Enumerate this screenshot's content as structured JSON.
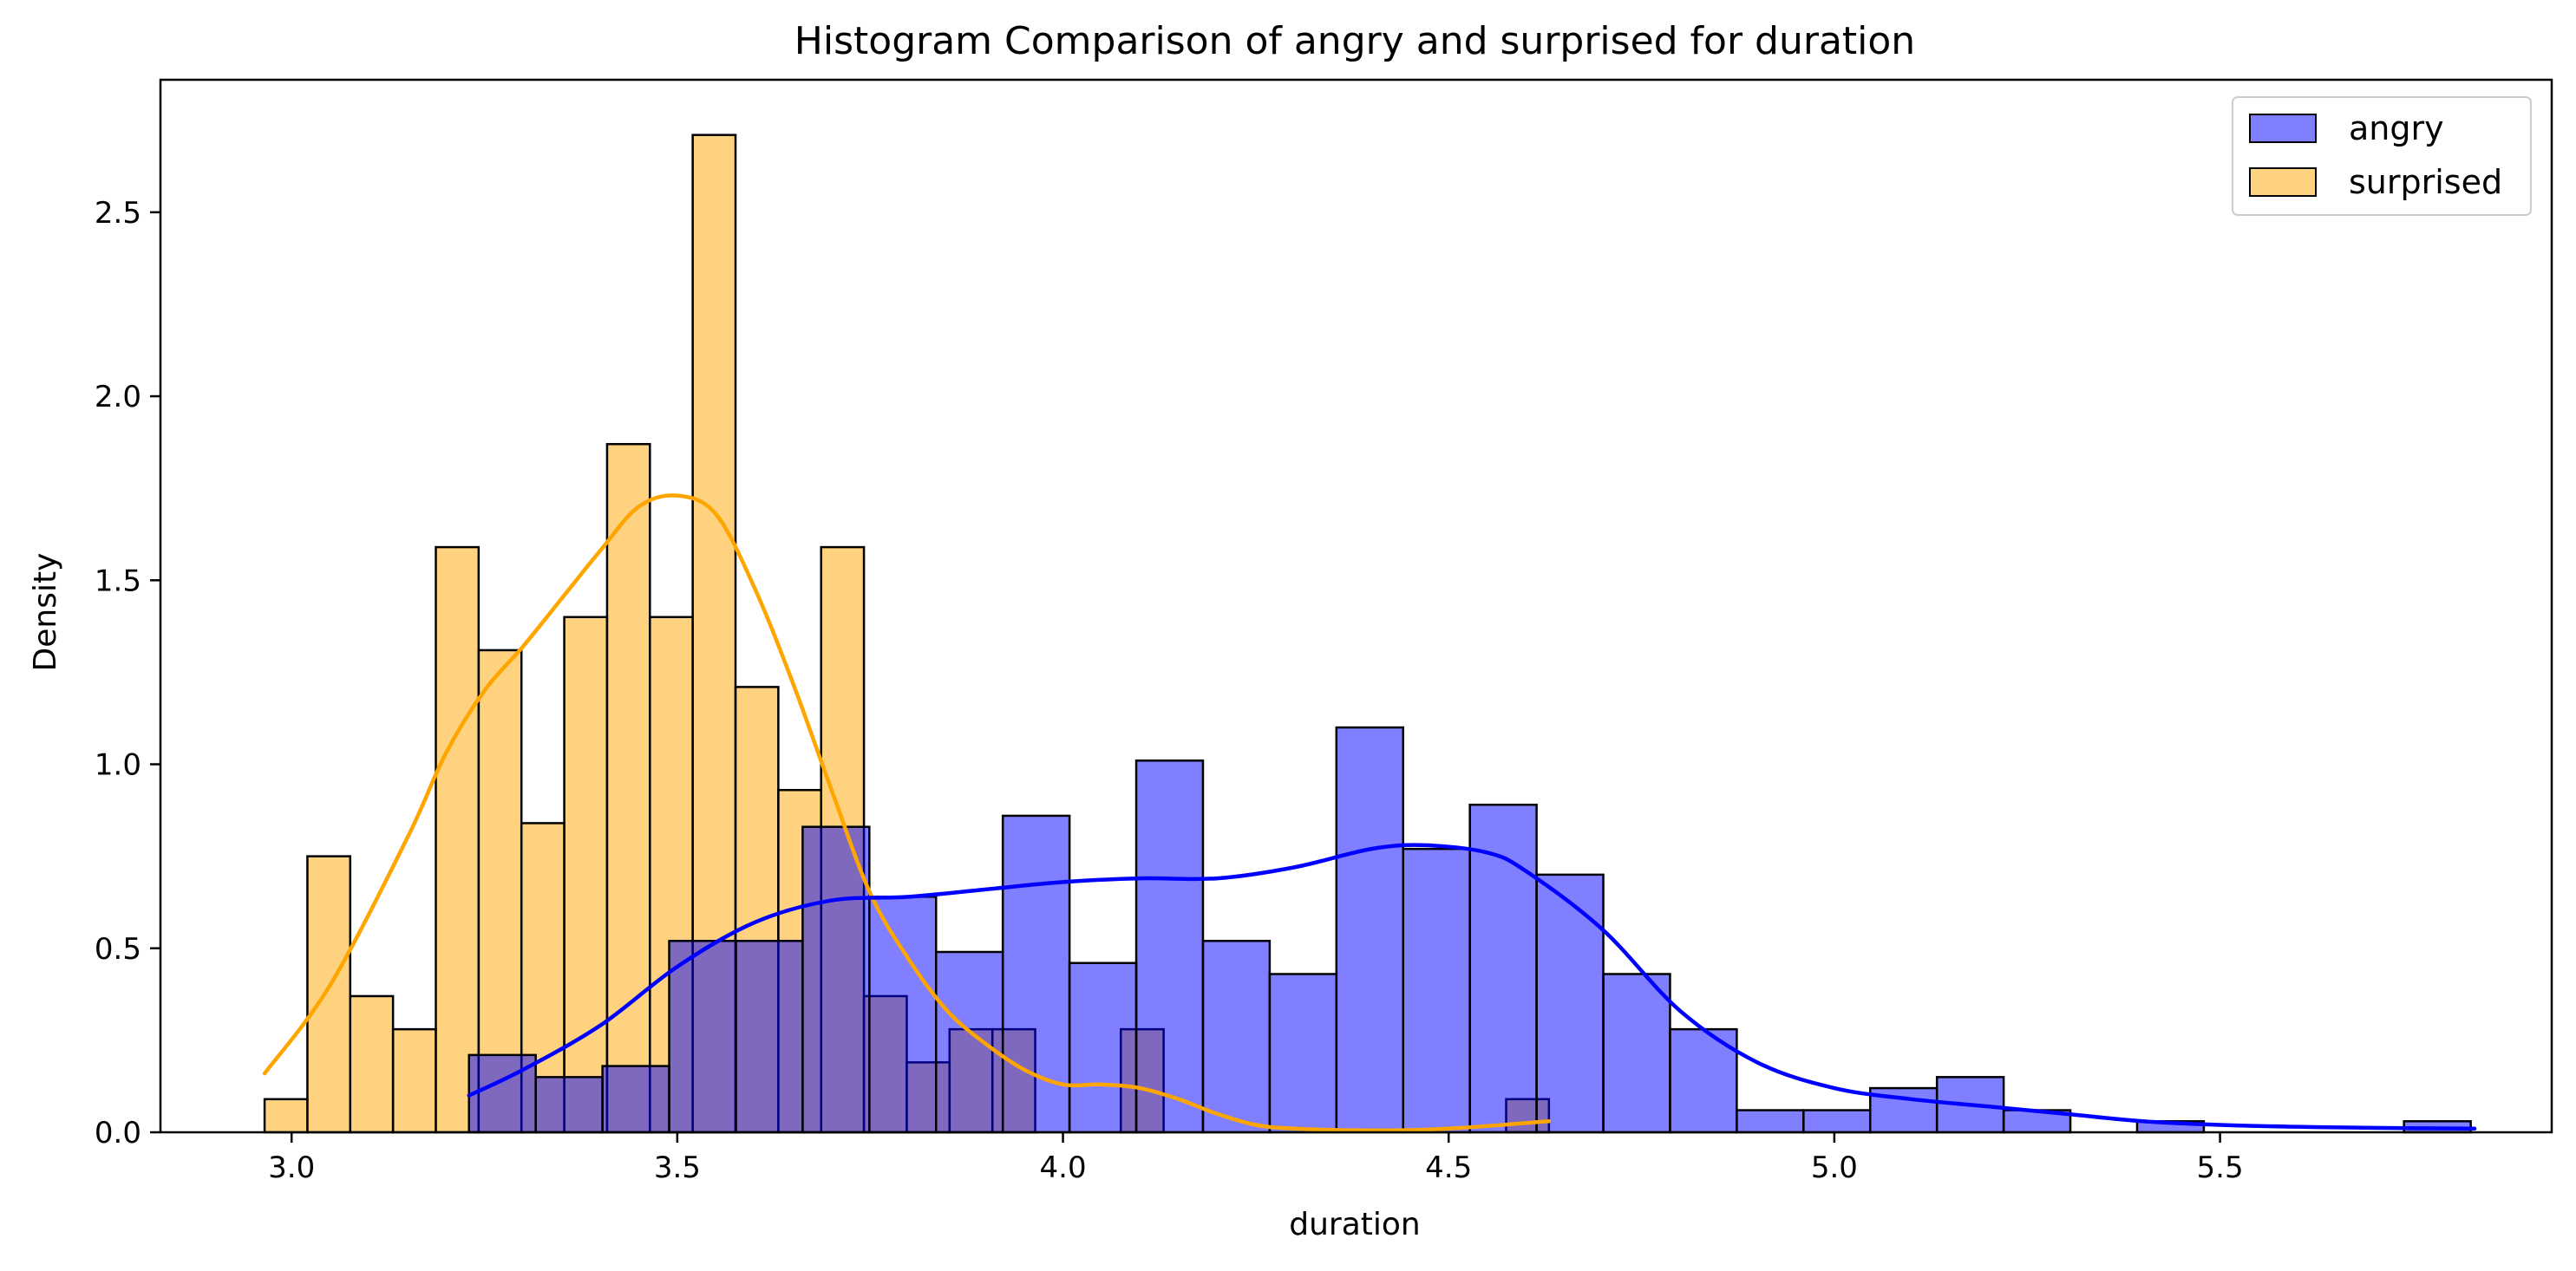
{
  "chart_data": {
    "type": "bar",
    "title": "Histogram Comparison of angry and surprised for duration",
    "xlabel": "duration",
    "ylabel": "Density",
    "xlim": [
      2.83,
      5.93
    ],
    "ylim": [
      0,
      2.86
    ],
    "xticks": [
      3.0,
      3.5,
      4.0,
      4.5,
      5.0,
      5.5
    ],
    "xtick_labels": [
      "3.0",
      "3.5",
      "4.0",
      "4.5",
      "5.0",
      "5.5"
    ],
    "yticks": [
      0.0,
      0.5,
      1.0,
      1.5,
      2.0,
      2.5
    ],
    "ytick_labels": [
      "0.0",
      "0.5",
      "1.0",
      "1.5",
      "2.0",
      "2.5"
    ],
    "legend_position": "top-right",
    "grid": false,
    "series": [
      {
        "name": "surprised",
        "color": "#FFA500",
        "fill_opacity": 0.5,
        "bin_width": 0.0555,
        "bin_starts": [
          2.965,
          3.0205,
          3.076,
          3.1315,
          3.187,
          3.2425,
          3.298,
          3.3535,
          3.409,
          3.4645,
          3.52,
          3.5755,
          3.631,
          3.6865,
          3.742,
          3.7975,
          3.853,
          3.9085,
          3.964,
          4.0195,
          4.075,
          4.1305,
          4.186,
          4.2415,
          4.297,
          4.3525,
          4.408,
          4.4635,
          4.519,
          4.5745
        ],
        "values": [
          0.09,
          0.75,
          0.37,
          0.28,
          1.59,
          1.31,
          0.84,
          1.4,
          1.87,
          1.4,
          2.71,
          1.21,
          0.93,
          1.59,
          0.37,
          0.19,
          0.28,
          0.28,
          0.0,
          0.0,
          0.28,
          0.0,
          0.0,
          0.0,
          0.0,
          0.0,
          0.0,
          0.0,
          0.0,
          0.09
        ],
        "kde_x": [
          2.965,
          3.05,
          3.15,
          3.2,
          3.25,
          3.3,
          3.35,
          3.4,
          3.45,
          3.5,
          3.55,
          3.6,
          3.65,
          3.7,
          3.75,
          3.8,
          3.85,
          3.9,
          3.95,
          4.0,
          4.05,
          4.1,
          4.15,
          4.2,
          4.25,
          4.3,
          4.4,
          4.5,
          4.63
        ],
        "kde_y": [
          0.16,
          0.4,
          0.8,
          1.03,
          1.2,
          1.32,
          1.45,
          1.58,
          1.7,
          1.73,
          1.68,
          1.48,
          1.22,
          0.93,
          0.65,
          0.47,
          0.33,
          0.24,
          0.17,
          0.13,
          0.13,
          0.12,
          0.09,
          0.05,
          0.02,
          0.01,
          0.005,
          0.01,
          0.03
        ]
      },
      {
        "name": "angry",
        "color": "#0000FF",
        "fill_opacity": 0.5,
        "bin_width": 0.0865,
        "bin_starts": [
          3.23,
          3.3165,
          3.403,
          3.4895,
          3.576,
          3.6625,
          3.749,
          3.8355,
          3.922,
          4.0085,
          4.095,
          4.1815,
          4.268,
          4.3545,
          4.441,
          4.5275,
          4.614,
          4.7005,
          4.787,
          4.8735,
          4.96,
          5.0465,
          5.133,
          5.2195,
          5.306,
          5.3925,
          5.479,
          5.5655,
          5.652,
          5.7385
        ],
        "values": [
          0.21,
          0.15,
          0.18,
          0.52,
          0.52,
          0.83,
          0.64,
          0.49,
          0.86,
          0.46,
          1.01,
          0.52,
          0.43,
          1.1,
          0.77,
          0.89,
          0.7,
          0.43,
          0.28,
          0.06,
          0.06,
          0.12,
          0.15,
          0.06,
          0.0,
          0.03,
          0.0,
          0.0,
          0.0,
          0.03
        ],
        "kde_x": [
          3.23,
          3.3,
          3.4,
          3.5,
          3.6,
          3.7,
          3.8,
          3.9,
          4.0,
          4.1,
          4.2,
          4.3,
          4.4,
          4.47,
          4.55,
          4.6,
          4.7,
          4.8,
          4.9,
          5.0,
          5.1,
          5.2,
          5.3,
          5.4,
          5.5,
          5.6,
          5.7,
          5.83
        ],
        "kde_y": [
          0.1,
          0.17,
          0.29,
          0.45,
          0.57,
          0.63,
          0.64,
          0.66,
          0.68,
          0.69,
          0.69,
          0.72,
          0.77,
          0.78,
          0.76,
          0.71,
          0.55,
          0.33,
          0.19,
          0.12,
          0.09,
          0.07,
          0.05,
          0.03,
          0.02,
          0.015,
          0.012,
          0.01
        ]
      }
    ]
  }
}
